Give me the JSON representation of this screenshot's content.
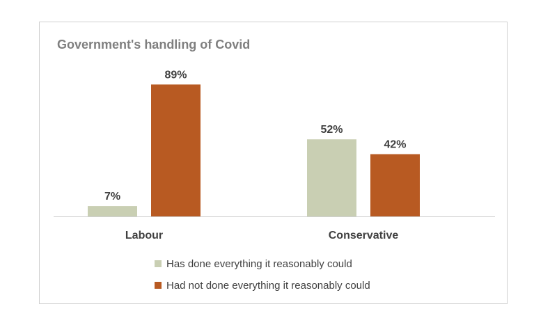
{
  "chart_data": {
    "type": "bar",
    "title": "Government's handling of Covid",
    "categories": [
      "Labour",
      "Conservative"
    ],
    "series": [
      {
        "name": "Has done everything it reasonably could",
        "values": [
          7,
          52
        ],
        "color": "#c9cfb3"
      },
      {
        "name": "Had not done everything it reasonably could",
        "values": [
          89,
          42
        ],
        "color": "#b85a22"
      }
    ],
    "value_format": "%",
    "ylim": [
      0,
      100
    ],
    "grid": false,
    "y_axis_visible": false,
    "legend_position": "bottom"
  }
}
